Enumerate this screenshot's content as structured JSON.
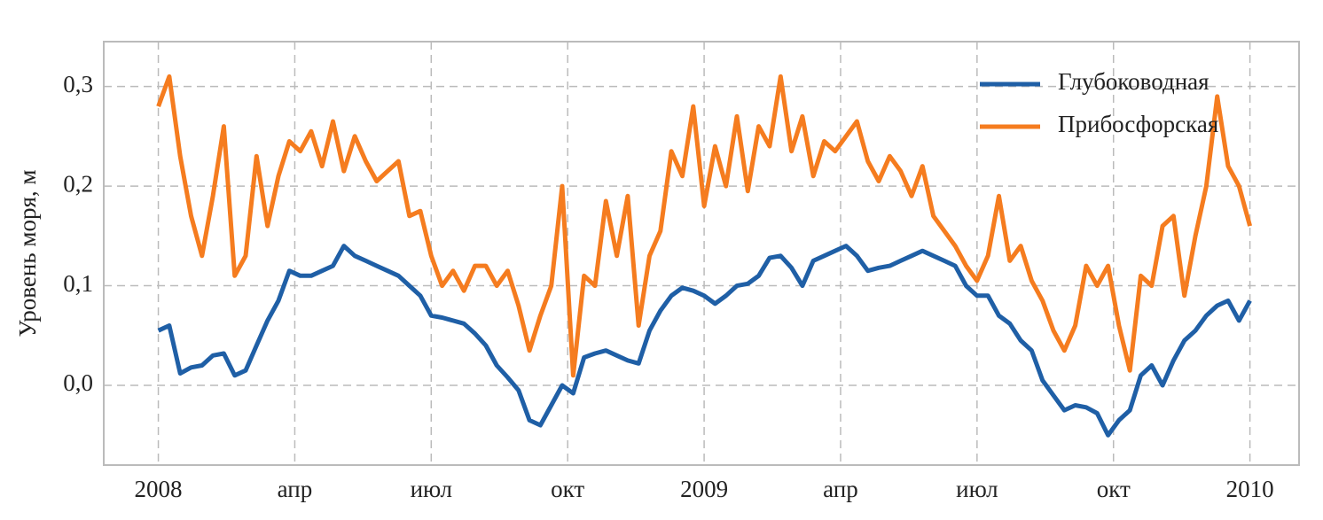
{
  "chart_data": {
    "type": "line",
    "ylabel": "Уровень моря, м",
    "x": [
      2008.0,
      2008.02,
      2008.04,
      2008.06,
      2008.08,
      2008.1,
      2008.12,
      2008.14,
      2008.16,
      2008.18,
      2008.2,
      2008.22,
      2008.24,
      2008.26,
      2008.28,
      2008.3,
      2008.32,
      2008.34,
      2008.36,
      2008.38,
      2008.4,
      2008.42,
      2008.44,
      2008.46,
      2008.48,
      2008.5,
      2008.52,
      2008.54,
      2008.56,
      2008.58,
      2008.6,
      2008.62,
      2008.64,
      2008.66,
      2008.68,
      2008.7,
      2008.72,
      2008.74,
      2008.76,
      2008.78,
      2008.8,
      2008.82,
      2008.84,
      2008.86,
      2008.88,
      2008.9,
      2008.92,
      2008.94,
      2008.96,
      2008.98,
      2009.0,
      2009.02,
      2009.04,
      2009.06,
      2009.08,
      2009.1,
      2009.12,
      2009.14,
      2009.16,
      2009.18,
      2009.2,
      2009.22,
      2009.24,
      2009.26,
      2009.28,
      2009.3,
      2009.32,
      2009.34,
      2009.36,
      2009.38,
      2009.4,
      2009.42,
      2009.44,
      2009.46,
      2009.48,
      2009.5,
      2009.52,
      2009.54,
      2009.56,
      2009.58,
      2009.6,
      2009.62,
      2009.64,
      2009.66,
      2009.68,
      2009.7,
      2009.72,
      2009.74,
      2009.76,
      2009.78,
      2009.8,
      2009.82,
      2009.84,
      2009.86,
      2009.88,
      2009.9,
      2009.92,
      2009.94,
      2009.96,
      2009.98,
      2010.0
    ],
    "series": [
      {
        "name": "Глубоководная",
        "color": "#1f5fa6",
        "values": [
          0.055,
          0.06,
          0.012,
          0.018,
          0.02,
          0.03,
          0.032,
          0.01,
          0.015,
          0.04,
          0.065,
          0.085,
          0.115,
          0.11,
          0.11,
          0.115,
          0.12,
          0.14,
          0.13,
          0.125,
          0.12,
          0.115,
          0.11,
          0.1,
          0.09,
          0.07,
          0.068,
          0.065,
          0.062,
          0.052,
          0.04,
          0.02,
          0.008,
          -0.005,
          -0.035,
          -0.04,
          -0.02,
          0.0,
          -0.008,
          0.028,
          0.032,
          0.035,
          0.03,
          0.025,
          0.022,
          0.055,
          0.075,
          0.09,
          0.098,
          0.095,
          0.09,
          0.082,
          0.09,
          0.1,
          0.102,
          0.11,
          0.128,
          0.13,
          0.118,
          0.1,
          0.125,
          0.13,
          0.135,
          0.14,
          0.13,
          0.115,
          0.118,
          0.12,
          0.125,
          0.13,
          0.135,
          0.13,
          0.125,
          0.12,
          0.1,
          0.09,
          0.09,
          0.07,
          0.062,
          0.045,
          0.035,
          0.005,
          -0.01,
          -0.025,
          -0.02,
          -0.022,
          -0.028,
          -0.05,
          -0.035,
          -0.025,
          0.01,
          0.02,
          0.0,
          0.025,
          0.045,
          0.055,
          0.07,
          0.08,
          0.085,
          0.065,
          0.085
        ]
      },
      {
        "name": "Прибосфорская",
        "color": "#f57c1f",
        "values": [
          0.28,
          0.31,
          0.23,
          0.17,
          0.13,
          0.19,
          0.26,
          0.11,
          0.13,
          0.23,
          0.16,
          0.21,
          0.245,
          0.235,
          0.255,
          0.22,
          0.265,
          0.215,
          0.25,
          0.225,
          0.205,
          0.215,
          0.225,
          0.17,
          0.175,
          0.13,
          0.1,
          0.115,
          0.095,
          0.12,
          0.12,
          0.1,
          0.115,
          0.08,
          0.035,
          0.07,
          0.1,
          0.2,
          0.01,
          0.11,
          0.1,
          0.185,
          0.13,
          0.19,
          0.06,
          0.13,
          0.155,
          0.235,
          0.21,
          0.28,
          0.18,
          0.24,
          0.2,
          0.27,
          0.195,
          0.26,
          0.24,
          0.31,
          0.235,
          0.27,
          0.21,
          0.245,
          0.235,
          0.25,
          0.265,
          0.225,
          0.205,
          0.23,
          0.215,
          0.19,
          0.22,
          0.17,
          0.155,
          0.14,
          0.12,
          0.105,
          0.13,
          0.19,
          0.125,
          0.14,
          0.105,
          0.085,
          0.055,
          0.035,
          0.06,
          0.12,
          0.1,
          0.12,
          0.06,
          0.015,
          0.11,
          0.1,
          0.16,
          0.17,
          0.09,
          0.15,
          0.2,
          0.29,
          0.22,
          0.2,
          0.16
        ]
      }
    ],
    "xlim": [
      2007.9,
      2010.09
    ],
    "xticks": [
      {
        "value": 2008,
        "label": "2008"
      },
      {
        "value": 2008.25,
        "label": "апр"
      },
      {
        "value": 2008.5,
        "label": "июл"
      },
      {
        "value": 2008.75,
        "label": "окт"
      },
      {
        "value": 2009,
        "label": "2009"
      },
      {
        "value": 2009.25,
        "label": "апр"
      },
      {
        "value": 2009.5,
        "label": "июл"
      },
      {
        "value": 2009.75,
        "label": "окт"
      },
      {
        "value": 2010,
        "label": "2010"
      }
    ],
    "ylim": [
      -0.08,
      0.345
    ],
    "yticks": [
      {
        "value": 0.0,
        "label": "0,0"
      },
      {
        "value": 0.1,
        "label": "0,1"
      },
      {
        "value": 0.2,
        "label": "0,2"
      },
      {
        "value": 0.3,
        "label": "0,3"
      }
    ],
    "grid": true,
    "legend": "upper right"
  }
}
